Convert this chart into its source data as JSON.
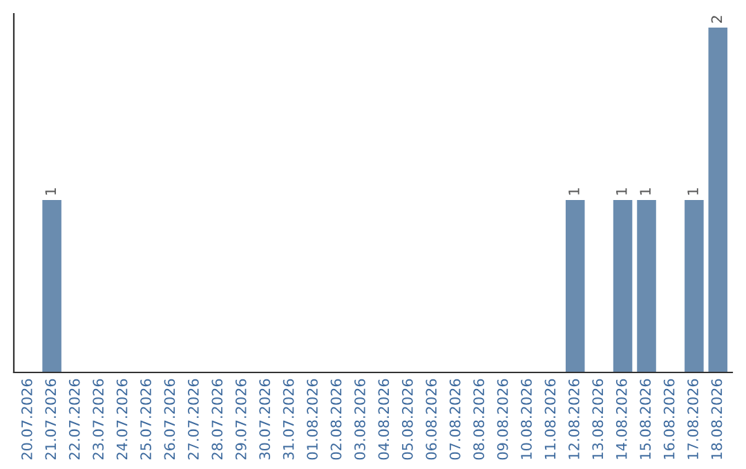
{
  "chart_data": {
    "type": "bar",
    "categories": [
      "20.07.2026",
      "21.07.2026",
      "22.07.2026",
      "23.07.2026",
      "24.07.2026",
      "25.07.2026",
      "26.07.2026",
      "27.07.2026",
      "28.07.2026",
      "29.07.2026",
      "30.07.2026",
      "31.07.2026",
      "01.08.2026",
      "02.08.2026",
      "03.08.2026",
      "04.08.2026",
      "05.08.2026",
      "06.08.2026",
      "07.08.2026",
      "08.08.2026",
      "09.08.2026",
      "10.08.2026",
      "11.08.2026",
      "12.08.2026",
      "13.08.2026",
      "14.08.2026",
      "15.08.2026",
      "16.08.2026",
      "17.08.2026",
      "18.08.2026"
    ],
    "values": [
      0,
      1,
      0,
      0,
      0,
      0,
      0,
      0,
      0,
      0,
      0,
      0,
      0,
      0,
      0,
      0,
      0,
      0,
      0,
      0,
      0,
      0,
      0,
      1,
      0,
      1,
      1,
      0,
      1,
      2
    ],
    "value_labels": [
      null,
      "1",
      null,
      null,
      null,
      null,
      null,
      null,
      null,
      null,
      null,
      null,
      null,
      null,
      null,
      null,
      null,
      null,
      null,
      null,
      null,
      null,
      null,
      "1",
      null,
      "1",
      "1",
      null,
      "1",
      "2"
    ],
    "color": "#6a8caf",
    "ylim": [
      0,
      2.08
    ],
    "tick_labels": "x",
    "grid": false,
    "legend": false
  }
}
